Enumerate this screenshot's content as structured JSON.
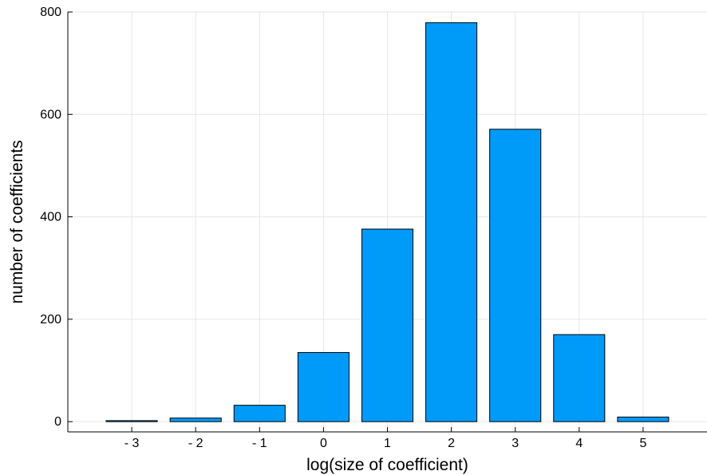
{
  "chart_data": {
    "type": "bar",
    "x": [
      -3,
      -2,
      -1,
      0,
      1,
      2,
      3,
      4,
      5
    ],
    "values": [
      2,
      7,
      32,
      135,
      376,
      779,
      571,
      170,
      9
    ],
    "tick_labels_x": [
      "- 3",
      "- 2",
      "- 1",
      "0",
      "1",
      "2",
      "3",
      "4",
      "5"
    ],
    "yticks": [
      0,
      200,
      400,
      600,
      800
    ],
    "tick_labels_y": [
      "0",
      "200",
      "400",
      "600",
      "800"
    ],
    "xlabel": "log(size of coefficient)",
    "ylabel": "number of coefficients",
    "xlim": [
      -4,
      6
    ],
    "ylim": [
      -20,
      800
    ],
    "grid": true,
    "bar_color": "#009af9",
    "legend": "none"
  }
}
